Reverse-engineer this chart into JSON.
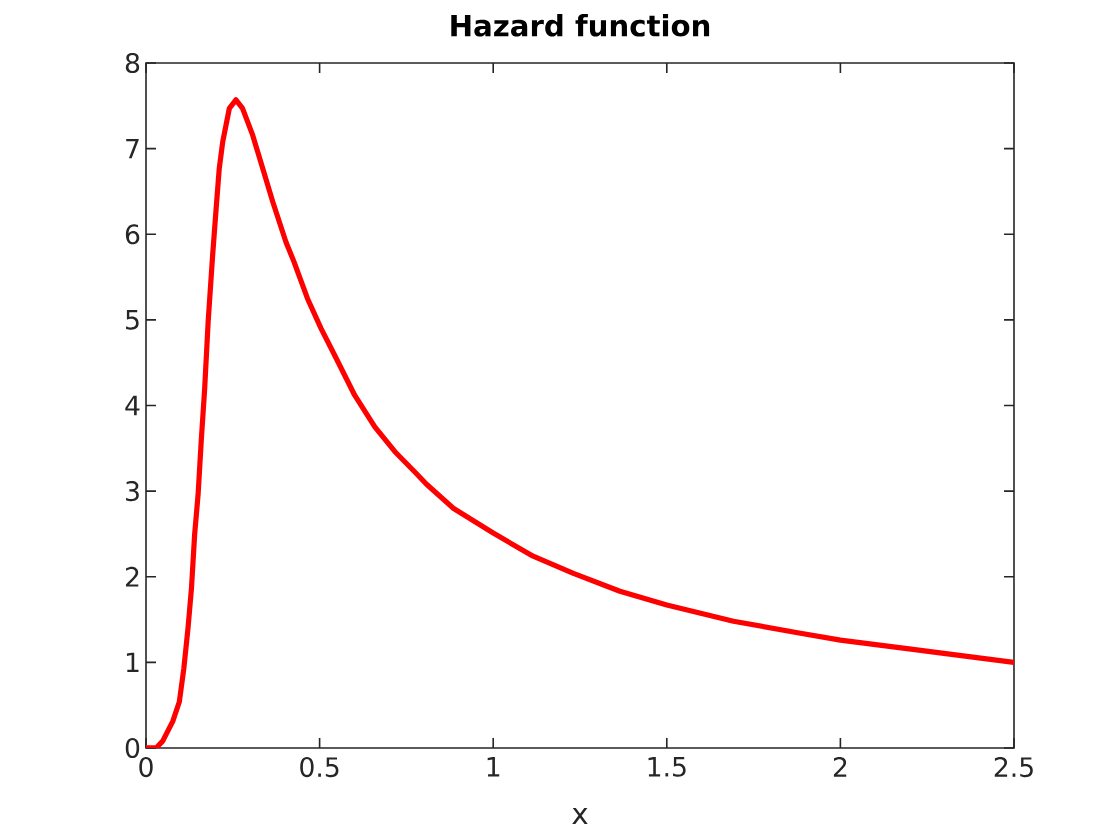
{
  "chart_data": {
    "type": "line",
    "title": "Hazard function",
    "xlabel": "x",
    "x": [
      0,
      0.02,
      0.029,
      0.048,
      0.077,
      0.096,
      0.109,
      0.121,
      0.131,
      0.14,
      0.15,
      0.159,
      0.169,
      0.179,
      0.192,
      0.202,
      0.211,
      0.221,
      0.24,
      0.259,
      0.278,
      0.307,
      0.336,
      0.365,
      0.403,
      0.426,
      0.465,
      0.504,
      0.543,
      0.601,
      0.659,
      0.717,
      0.775,
      0.808,
      0.885,
      1.0,
      1.115,
      1.231,
      1.365,
      1.5,
      1.692,
      1.885,
      2.0,
      2.192,
      2.365,
      2.5
    ],
    "series": [
      {
        "color": "#ff0000",
        "values": [
          0,
          0,
          0,
          0.08,
          0.31,
          0.54,
          0.93,
          1.4,
          1.87,
          2.49,
          2.96,
          3.58,
          4.2,
          4.98,
          5.76,
          6.3,
          6.77,
          7.08,
          7.47,
          7.57,
          7.47,
          7.16,
          6.77,
          6.38,
          5.91,
          5.68,
          5.25,
          4.9,
          4.59,
          4.12,
          3.75,
          3.46,
          3.22,
          3.08,
          2.8,
          2.51,
          2.24,
          2.04,
          1.83,
          1.67,
          1.48,
          1.34,
          1.26,
          1.16,
          1.07,
          1.0
        ]
      }
    ],
    "xlim": [
      0,
      2.5
    ],
    "ylim": [
      0,
      8
    ],
    "xticks": [
      0,
      0.5,
      1,
      1.5,
      2,
      2.5
    ],
    "yticks": [
      0,
      1,
      2,
      3,
      4,
      5,
      6,
      7,
      8
    ],
    "line_style": "solid"
  }
}
